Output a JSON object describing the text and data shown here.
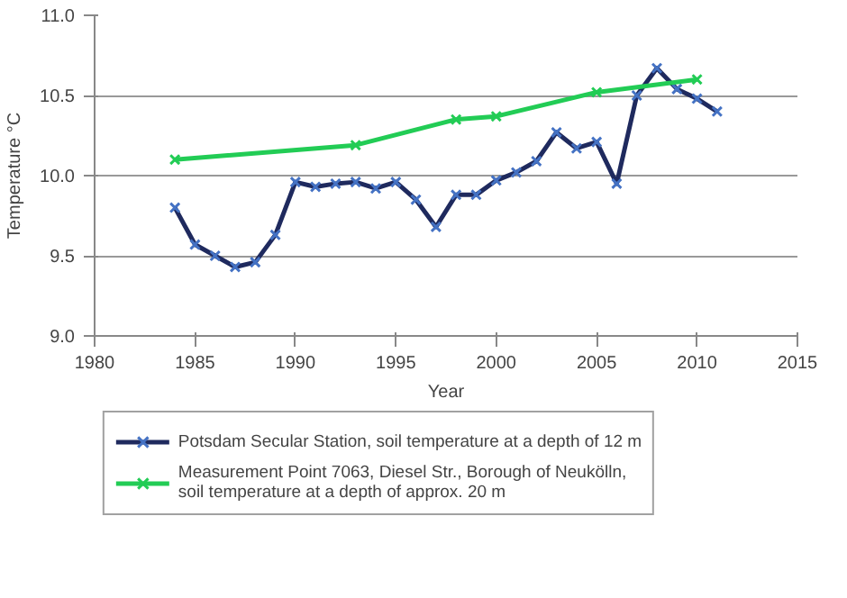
{
  "chart_data": {
    "type": "line",
    "xlabel": "Year",
    "ylabel": "Temperature °C",
    "xlim": [
      1980,
      2015
    ],
    "xticks": [
      1980,
      1985,
      1990,
      1995,
      2000,
      2005,
      2010,
      2015
    ],
    "ylim": [
      9.0,
      11.0
    ],
    "yticks": [
      {
        "value": 9.0,
        "label": "9.0"
      },
      {
        "value": 9.5,
        "label": "9.5"
      },
      {
        "value": 10.0,
        "label": "10.0"
      },
      {
        "value": 10.5,
        "label": "10.5"
      },
      {
        "value": 11.0,
        "label": "11.0"
      }
    ],
    "grid": "y",
    "legend": "bottom",
    "marker": "cross",
    "line_style": "solid",
    "series": [
      {
        "name": "Potsdam Secular Station, soil temperature at a depth of 12 m",
        "color": "#1f2a5e",
        "x": [
          1984,
          1985,
          1986,
          1987,
          1988,
          1989,
          1990,
          1991,
          1992,
          1993,
          1994,
          1995,
          1996,
          1997,
          1998,
          1999,
          2000,
          2001,
          2002,
          2003,
          2004,
          2005,
          2006,
          2007,
          2008,
          2009,
          2010,
          2011
        ],
        "values": [
          9.8,
          9.57,
          9.5,
          9.43,
          9.46,
          9.63,
          9.96,
          9.93,
          9.95,
          9.96,
          9.92,
          9.96,
          9.85,
          9.68,
          9.88,
          9.88,
          9.97,
          10.02,
          10.09,
          10.27,
          10.17,
          10.21,
          9.95,
          10.5,
          10.67,
          10.54,
          10.48,
          10.4
        ]
      },
      {
        "name": "Measurement Point 7063, Diesel Str., Borough of Neukölln,\nsoil temperature at a depth of approx. 20 m",
        "color": "#22cc55",
        "x": [
          1984,
          1993,
          1998,
          2000,
          2005,
          2010
        ],
        "values": [
          10.1,
          10.19,
          10.35,
          10.37,
          10.52,
          10.6
        ]
      }
    ]
  }
}
